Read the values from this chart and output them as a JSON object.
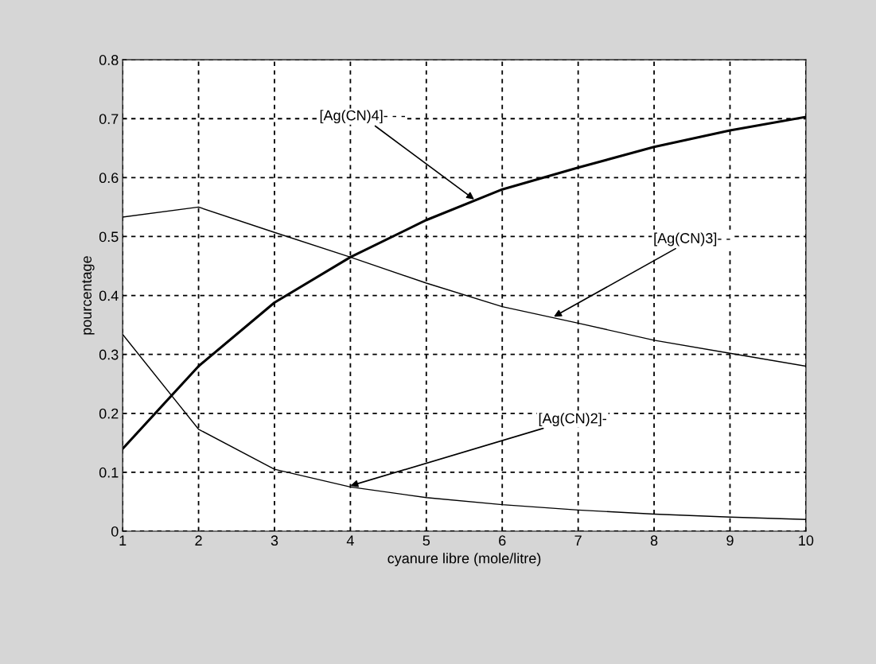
{
  "chart_data": {
    "type": "line",
    "xlabel": "cyanure libre (mole/litre)",
    "ylabel": "pourcentage",
    "x": [
      1,
      2,
      3,
      4,
      5,
      6,
      7,
      8,
      9,
      10
    ],
    "series": [
      {
        "color": "#000000",
        "values": [
          0.14,
          0.28,
          0.388,
          0.465,
          0.528,
          0.58,
          0.617,
          0.652,
          0.68,
          0.703
        ]
      },
      {
        "color": "#000000",
        "values": [
          0.533,
          0.55,
          0.507,
          0.465,
          0.421,
          0.381,
          0.353,
          0.324,
          0.302,
          0.28
        ]
      },
      {
        "color": "#000000",
        "values": [
          0.334,
          0.173,
          0.105,
          0.075,
          0.057,
          0.045,
          0.036,
          0.029,
          0.024,
          0.02
        ]
      }
    ],
    "annotations": [
      {
        "text": "[Ag(CN)4]- - -",
        "x": 5.63,
        "y": 0.563
      },
      {
        "text": "[Ag(CN)3]- -",
        "x": 6.68,
        "y": 0.364
      },
      {
        "text": "[Ag(CN)2]-",
        "x": 4.0,
        "y": 0.077
      }
    ],
    "xlim": [
      1,
      10
    ],
    "ylim": [
      0,
      0.8
    ],
    "xticks": [
      1,
      2,
      3,
      4,
      5,
      6,
      7,
      8,
      9,
      10
    ],
    "yticks": [
      0,
      0.1,
      0.2,
      0.3,
      0.4,
      0.5,
      0.6,
      0.7,
      0.8
    ],
    "grid": true,
    "line_style": "solid",
    "marker": "none"
  }
}
